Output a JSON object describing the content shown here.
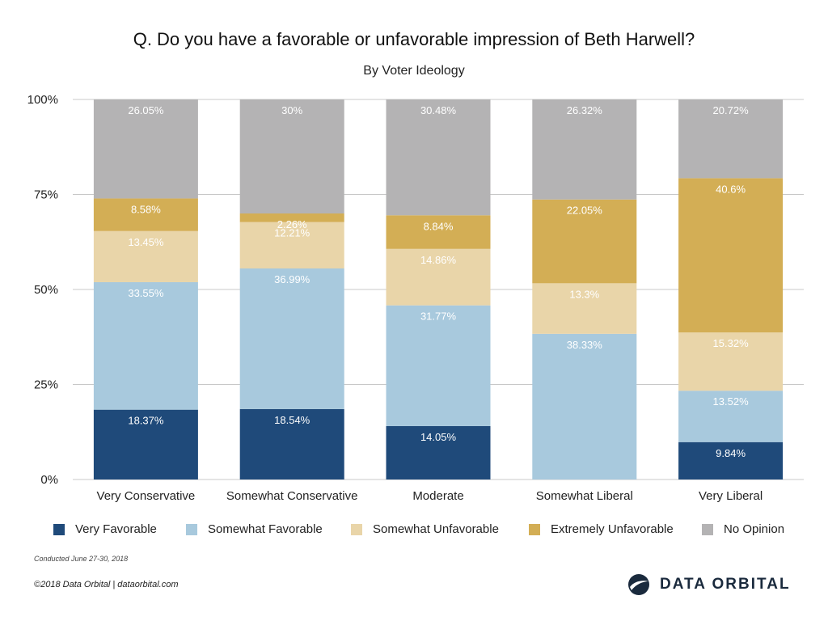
{
  "header": {
    "title": "Q. Do you have a favorable or unfavorable impression of Beth Harwell?",
    "subtitle": "By Voter Ideology"
  },
  "chart_data": {
    "type": "bar",
    "stacked": true,
    "title": "Q. Do you have a favorable or unfavorable impression of Beth Harwell?",
    "subtitle": "By Voter Ideology",
    "categories": [
      "Very Conservative",
      "Somewhat Conservative",
      "Moderate",
      "Somewhat Liberal",
      "Very Liberal"
    ],
    "series": [
      {
        "name": "Very Favorable",
        "color": "#1f4a7a",
        "label_color": "#ffffff",
        "values": [
          18.37,
          18.54,
          14.05,
          0,
          9.84
        ],
        "labels": [
          "18.37%",
          "18.54%",
          "14.05%",
          "",
          "9.84%"
        ]
      },
      {
        "name": "Somewhat Favorable",
        "color": "#a8c9dd",
        "label_color": "#ffffff",
        "values": [
          33.55,
          36.99,
          31.77,
          38.33,
          13.52
        ],
        "labels": [
          "33.55%",
          "36.99%",
          "31.77%",
          "38.33%",
          "13.52%"
        ]
      },
      {
        "name": "Somewhat Unfavorable",
        "color": "#e9d5a9",
        "label_color": "#ffffff",
        "values": [
          13.45,
          12.21,
          14.86,
          13.3,
          15.32
        ],
        "labels": [
          "13.45%",
          "12.21%",
          "14.86%",
          "13.3%",
          "15.32%"
        ]
      },
      {
        "name": "Extremely Unfavorable",
        "color": "#d3ae55",
        "label_color": "#ffffff",
        "values": [
          8.58,
          2.26,
          8.84,
          22.05,
          40.6
        ],
        "labels": [
          "8.58%",
          "2.26%",
          "8.84%",
          "22.05%",
          "40.6%"
        ]
      },
      {
        "name": "No Opinion",
        "color": "#b4b3b4",
        "label_color": "#ffffff",
        "values": [
          26.05,
          30,
          30.48,
          26.32,
          20.72
        ],
        "labels": [
          "26.05%",
          "30%",
          "30.48%",
          "26.32%",
          "20.72%"
        ]
      }
    ],
    "yticks": [
      0,
      25,
      50,
      75,
      100
    ],
    "ytick_labels": [
      "0%",
      "25%",
      "50%",
      "75%",
      "100%"
    ],
    "ylim": [
      0,
      100
    ],
    "xlabel": "",
    "ylabel": "",
    "grid": true,
    "legend": "bottom"
  },
  "footer": {
    "note": "Conducted June 27-30, 2018",
    "copyright": "©2018 Data Orbital | dataorbital.com",
    "brand_name": "DATA ORBITAL"
  }
}
